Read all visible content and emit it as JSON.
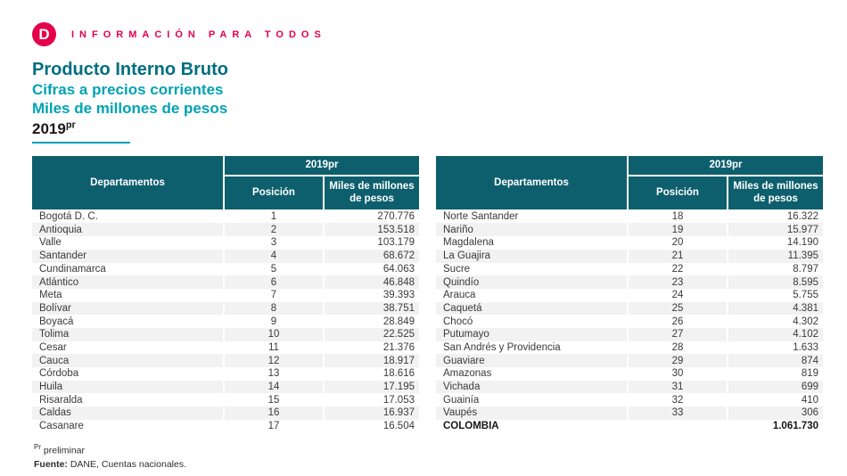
{
  "brand": {
    "logo_letter": "D",
    "tagline": "INFORMACIÓN PARA TODOS"
  },
  "header": {
    "title": "Producto Interno Bruto",
    "subtitle_prices": "Cifras a precios corrientes",
    "subtitle_units": "Miles de millones de pesos",
    "year": "2019",
    "year_sup": "pr"
  },
  "table_header": {
    "departamentos": "Departamentos",
    "year_group": "2019pr",
    "posicion": "Posición",
    "miles": "Miles de millones de pesos"
  },
  "tables": [
    {
      "rows": [
        {
          "name": "Bogotá D. C.",
          "pos": "1",
          "value": "270.776"
        },
        {
          "name": "Antioquia",
          "pos": "2",
          "value": "153.518"
        },
        {
          "name": "Valle",
          "pos": "3",
          "value": "103.179"
        },
        {
          "name": "Santander",
          "pos": "4",
          "value": "68.672"
        },
        {
          "name": "Cundinamarca",
          "pos": "5",
          "value": "64.063"
        },
        {
          "name": "Atlántico",
          "pos": "6",
          "value": "46.848"
        },
        {
          "name": "Meta",
          "pos": "7",
          "value": "39.393"
        },
        {
          "name": "Bolívar",
          "pos": "8",
          "value": "38.751"
        },
        {
          "name": "Boyacá",
          "pos": "9",
          "value": "28.849"
        },
        {
          "name": "Tolima",
          "pos": "10",
          "value": "22.525"
        },
        {
          "name": "Cesar",
          "pos": "11",
          "value": "21.376"
        },
        {
          "name": "Cauca",
          "pos": "12",
          "value": "18.917"
        },
        {
          "name": "Córdoba",
          "pos": "13",
          "value": "18.616"
        },
        {
          "name": "Huila",
          "pos": "14",
          "value": "17.195"
        },
        {
          "name": "Risaralda",
          "pos": "15",
          "value": "17.053"
        },
        {
          "name": "Caldas",
          "pos": "16",
          "value": "16.937"
        },
        {
          "name": "Casanare",
          "pos": "17",
          "value": "16.504"
        }
      ]
    },
    {
      "rows": [
        {
          "name": "Norte Santander",
          "pos": "18",
          "value": "16.322"
        },
        {
          "name": "Nariño",
          "pos": "19",
          "value": "15.977"
        },
        {
          "name": "Magdalena",
          "pos": "20",
          "value": "14.190"
        },
        {
          "name": "La Guajira",
          "pos": "21",
          "value": "11.395"
        },
        {
          "name": "Sucre",
          "pos": "22",
          "value": "8.797"
        },
        {
          "name": "Quindío",
          "pos": "23",
          "value": "8.595"
        },
        {
          "name": "Arauca",
          "pos": "24",
          "value": "5.755"
        },
        {
          "name": "Caquetá",
          "pos": "25",
          "value": "4.381"
        },
        {
          "name": "Chocó",
          "pos": "26",
          "value": "4.302"
        },
        {
          "name": "Putumayo",
          "pos": "27",
          "value": "4.102"
        },
        {
          "name": "San Andrés y Providencia",
          "pos": "28",
          "value": "1.633"
        },
        {
          "name": "Guaviare",
          "pos": "29",
          "value": "874"
        },
        {
          "name": "Amazonas",
          "pos": "30",
          "value": "819"
        },
        {
          "name": "Vichada",
          "pos": "31",
          "value": "699"
        },
        {
          "name": "Guainía",
          "pos": "32",
          "value": "410"
        },
        {
          "name": "Vaupés",
          "pos": "33",
          "value": "306"
        },
        {
          "name": "COLOMBIA",
          "pos": "",
          "value": "1.061.730",
          "total": true
        }
      ]
    }
  ],
  "footer": {
    "footnote_sup": "Pr",
    "footnote_text": "preliminar",
    "source_label": "Fuente:",
    "source_text": "DANE, Cuentas nacionales."
  },
  "colors": {
    "brand_pink": "#e4004b",
    "title_teal_dark": "#006e80",
    "subtitle_teal": "#00a2b3",
    "table_header_teal": "#0e5f6d",
    "row_stripe_gray": "#f2f2f2"
  }
}
